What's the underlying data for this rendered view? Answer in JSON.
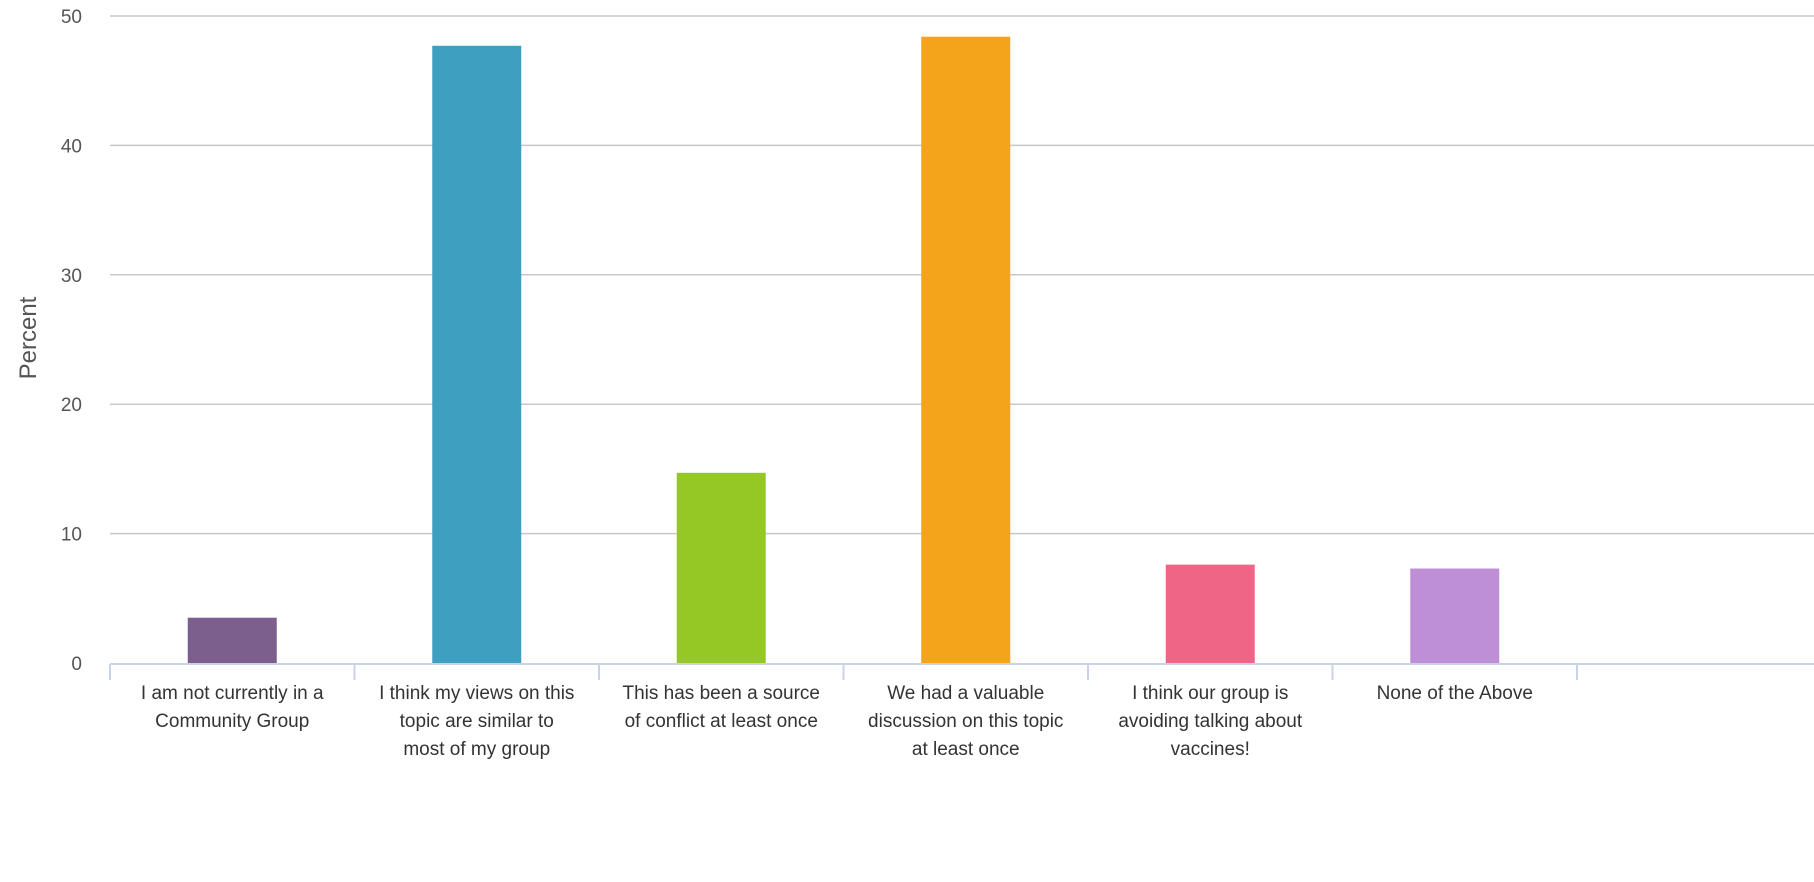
{
  "chart_data": {
    "type": "bar",
    "ylabel": "Percent",
    "xlabel": "",
    "ylim": [
      0,
      50
    ],
    "yticks": [
      0,
      10,
      20,
      30,
      40,
      50
    ],
    "grid": true,
    "legend": "none",
    "categories": [
      [
        "I am not currently in a",
        "Community Group"
      ],
      [
        "I think my views on this",
        "topic are similar to",
        "most of my group"
      ],
      [
        "This has been a source",
        "of conflict at least once"
      ],
      [
        "We had a valuable",
        "discussion on this topic",
        "at least once"
      ],
      [
        "I think our group is",
        "avoiding talking about",
        "vaccines!"
      ],
      [
        "None of the Above"
      ]
    ],
    "values": [
      3.5,
      47.7,
      14.7,
      48.4,
      7.6,
      7.3
    ],
    "colors": [
      "#7d5f8d",
      "#3e9fc1",
      "#95c825",
      "#f4a41a",
      "#ef6585",
      "#be8fd7"
    ]
  }
}
